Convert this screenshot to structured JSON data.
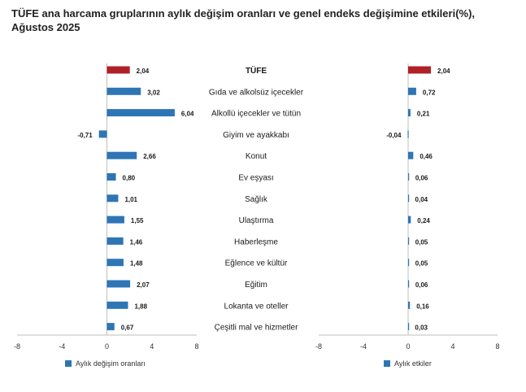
{
  "title": "TÜFE ana harcama gruplarının aylık değişim oranları ve genel endeks değişimine etkileri(%), Ağustos 2025",
  "colors": {
    "bar": "#2e75b6",
    "highlight": "#b02027",
    "axis": "#bfbfbf"
  },
  "chart_data": [
    {
      "type": "bar",
      "orientation": "horizontal",
      "legend": "Aylık değişim oranları",
      "legend_position": "bottom-left",
      "xlim": [
        -8,
        8
      ],
      "xticks": [
        -8,
        -4,
        0,
        4,
        8
      ],
      "grid": false,
      "categories": [
        "TÜFE",
        "Gıda ve alkolsüz içecekler",
        "Alkollü içecekler ve tütün",
        "Giyim ve ayakkabı",
        "Konut",
        "Ev eşyası",
        "Sağlık",
        "Ulaştırma",
        "Haberleşme",
        "Eğlence ve kültür",
        "Eğitim",
        "Lokanta ve oteller",
        "Çeşitli mal ve hizmetler"
      ],
      "values": [
        2.04,
        3.02,
        6.04,
        -0.71,
        2.66,
        0.8,
        1.01,
        1.55,
        1.46,
        1.48,
        2.07,
        1.88,
        0.67
      ],
      "labels": [
        "2,04",
        "3,02",
        "6,04",
        "-0,71",
        "2,66",
        "0,80",
        "1,01",
        "1,55",
        "1,46",
        "1,48",
        "2,07",
        "1,88",
        "0,67"
      ]
    },
    {
      "type": "bar",
      "orientation": "horizontal",
      "legend": "Aylık etkiler",
      "legend_position": "bottom-left",
      "xlim": [
        -8,
        8
      ],
      "xticks": [
        -8,
        -4,
        0,
        4,
        8
      ],
      "grid": false,
      "categories": [
        "TÜFE",
        "Gıda ve alkolsüz içecekler",
        "Alkollü içecekler ve tütün",
        "Giyim ve ayakkabı",
        "Konut",
        "Ev eşyası",
        "Sağlık",
        "Ulaştırma",
        "Haberleşme",
        "Eğlence ve kültür",
        "Eğitim",
        "Lokanta ve oteller",
        "Çeşitli mal ve hizmetler"
      ],
      "values": [
        2.04,
        0.72,
        0.21,
        -0.04,
        0.46,
        0.06,
        0.04,
        0.24,
        0.05,
        0.05,
        0.06,
        0.16,
        0.03
      ],
      "labels": [
        "2,04",
        "0,72",
        "0,21",
        "-0,04",
        "0,46",
        "0,06",
        "0,04",
        "0,24",
        "0,05",
        "0,05",
        "0,06",
        "0,16",
        "0,03"
      ]
    }
  ]
}
